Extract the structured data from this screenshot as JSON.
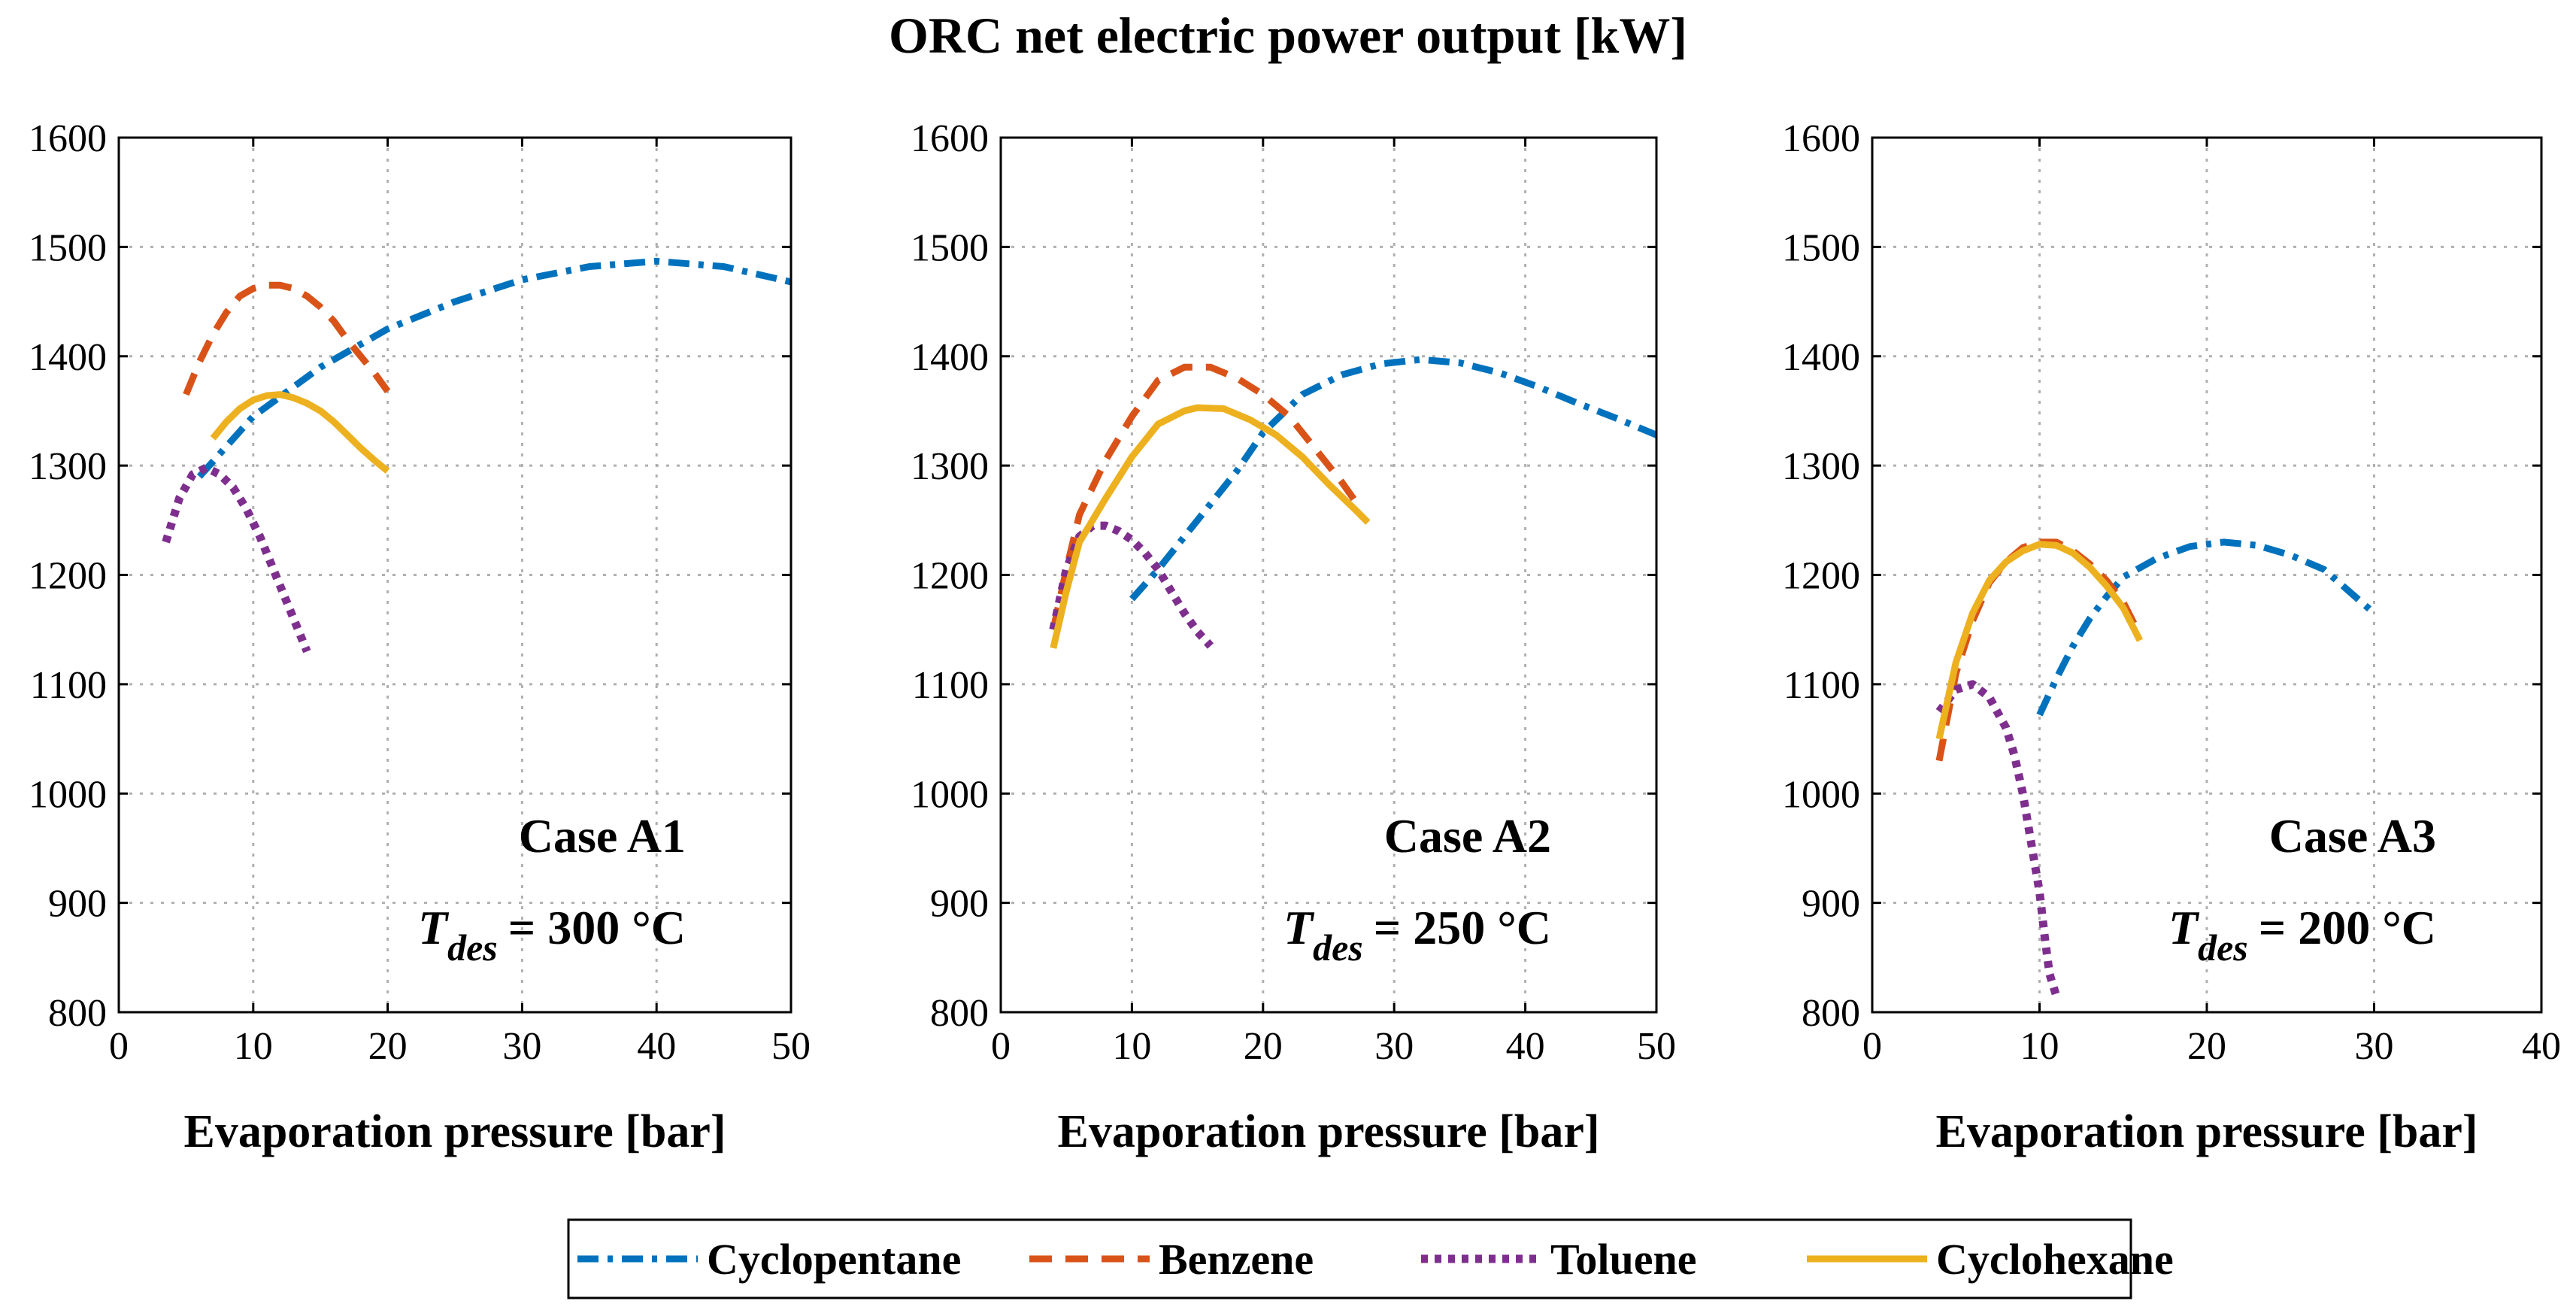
{
  "chart_data": {
    "type": "line",
    "title": "ORC net electric power output [kW]",
    "series_styles": [
      {
        "name": "Cyclopentane",
        "color": "#0072BD",
        "dash": "dashdot"
      },
      {
        "name": "Benzene",
        "color": "#D95319",
        "dash": "dash"
      },
      {
        "name": "Toluene",
        "color": "#7E2F8E",
        "dash": "dot"
      },
      {
        "name": "Cyclohexane",
        "color": "#EDB120",
        "dash": "solid"
      }
    ],
    "legend": {
      "placement": "bottom-center",
      "entries": [
        "Cyclopentane",
        "Benzene",
        "Toluene",
        "Cyclohexane"
      ]
    },
    "panels": [
      {
        "case_label": "Case A1",
        "tdes_symbol": "T",
        "tdes_subscript": "des",
        "tdes_value": "= 300 °C",
        "xlabel": "Evaporation pressure [bar]",
        "ylabel": "",
        "xlim": [
          0,
          50
        ],
        "ylim": [
          800,
          1600
        ],
        "xticks": [
          0,
          10,
          20,
          30,
          40,
          50
        ],
        "yticks": [
          800,
          900,
          1000,
          1100,
          1200,
          1300,
          1400,
          1500,
          1600
        ],
        "grid": true,
        "series": [
          {
            "name": "Cyclopentane",
            "x": [
              6,
              10,
              15,
              20,
              25,
              30,
              35,
              40,
              45,
              50
            ],
            "y": [
              1290,
              1345,
              1390,
              1425,
              1450,
              1470,
              1482,
              1487,
              1482,
              1468
            ]
          },
          {
            "name": "Benzene",
            "x": [
              5,
              6,
              7,
              8,
              9,
              10,
              11,
              12,
              13,
              14,
              15,
              16,
              17,
              18,
              19,
              20
            ],
            "y": [
              1365,
              1395,
              1420,
              1440,
              1455,
              1462,
              1465,
              1465,
              1462,
              1455,
              1445,
              1432,
              1415,
              1400,
              1385,
              1368
            ]
          },
          {
            "name": "Toluene",
            "x": [
              3.5,
              4.5,
              5.5,
              6.5,
              7.5,
              8.5,
              9.5,
              10.5,
              11.5,
              12.5,
              13.5,
              14
            ],
            "y": [
              1230,
              1270,
              1292,
              1298,
              1292,
              1280,
              1260,
              1235,
              1205,
              1175,
              1145,
              1130
            ]
          },
          {
            "name": "Cyclohexane",
            "x": [
              7,
              8,
              9,
              10,
              11,
              12,
              13,
              14,
              15,
              16,
              17,
              18,
              19,
              20
            ],
            "y": [
              1325,
              1340,
              1352,
              1360,
              1364,
              1365,
              1362,
              1357,
              1350,
              1340,
              1328,
              1316,
              1305,
              1295
            ]
          }
        ]
      },
      {
        "case_label": "Case A2",
        "tdes_symbol": "T",
        "tdes_subscript": "des",
        "tdes_value": "= 250 °C",
        "xlabel": "Evaporation pressure [bar]",
        "ylabel": "",
        "xlim": [
          0,
          50
        ],
        "ylim": [
          800,
          1600
        ],
        "xticks": [
          0,
          10,
          20,
          30,
          40,
          50
        ],
        "yticks": [
          800,
          900,
          1000,
          1100,
          1200,
          1300,
          1400,
          1500,
          1600
        ],
        "grid": true,
        "series": [
          {
            "name": "Cyclopentane",
            "x": [
              10,
              12,
              15,
              18,
              20,
              23,
              26,
              29,
              32,
              35,
              38,
              41,
              44,
              47,
              50
            ],
            "y": [
              1178,
              1205,
              1250,
              1295,
              1330,
              1365,
              1383,
              1393,
              1397,
              1394,
              1385,
              1372,
              1357,
              1343,
              1328
            ]
          },
          {
            "name": "Benzene",
            "x": [
              4,
              5,
              6,
              8,
              10,
              12,
              14,
              16,
              18,
              20,
              22,
              24,
              26,
              27
            ],
            "y": [
              1150,
              1205,
              1255,
              1305,
              1345,
              1378,
              1390,
              1390,
              1380,
              1365,
              1345,
              1315,
              1285,
              1268
            ]
          },
          {
            "name": "Toluene",
            "x": [
              4,
              5,
              6,
              7,
              8,
              9,
              10,
              11,
              12,
              13,
              14,
              15,
              16
            ],
            "y": [
              1150,
              1205,
              1235,
              1245,
              1245,
              1240,
              1232,
              1220,
              1205,
              1185,
              1165,
              1148,
              1135
            ]
          },
          {
            "name": "Cyclohexane",
            "x": [
              4,
              5,
              6,
              8,
              10,
              12,
              14,
              15,
              17,
              19,
              21,
              23,
              25,
              27,
              28
            ],
            "y": [
              1133,
              1185,
              1230,
              1270,
              1308,
              1338,
              1350,
              1353,
              1352,
              1342,
              1328,
              1308,
              1283,
              1260,
              1248
            ]
          }
        ]
      },
      {
        "case_label": "Case A3",
        "tdes_symbol": "T",
        "tdes_subscript": "des",
        "tdes_value": "= 200 °C",
        "xlabel": "Evaporation pressure [bar]",
        "ylabel": "",
        "xlim": [
          0,
          40
        ],
        "ylim": [
          800,
          1600
        ],
        "xticks": [
          0,
          10,
          20,
          30,
          40
        ],
        "yticks": [
          800,
          900,
          1000,
          1100,
          1200,
          1300,
          1400,
          1500,
          1600
        ],
        "grid": true,
        "series": [
          {
            "name": "Cyclopentane",
            "x": [
              10,
              11,
              12,
              13,
              14,
              15,
              17,
              19,
              21,
              23,
              25,
              27,
              30
            ],
            "y": [
              1072,
              1105,
              1135,
              1160,
              1180,
              1198,
              1215,
              1226,
              1230,
              1227,
              1218,
              1205,
              1165
            ]
          },
          {
            "name": "Benzene",
            "x": [
              4,
              5,
              6,
              7,
              8,
              9,
              10,
              11,
              12,
              13,
              14,
              15,
              16
            ],
            "y": [
              1030,
              1110,
              1158,
              1193,
              1212,
              1225,
              1230,
              1230,
              1222,
              1210,
              1195,
              1175,
              1145
            ]
          },
          {
            "name": "Toluene",
            "x": [
              4,
              5,
              6,
              7,
              8,
              8.5,
              9,
              9.5,
              10,
              10.3,
              10.6,
              11
            ],
            "y": [
              1075,
              1095,
              1100,
              1088,
              1060,
              1035,
              1000,
              955,
              910,
              870,
              835,
              815
            ]
          },
          {
            "name": "Cyclohexane",
            "x": [
              4,
              5,
              6,
              7,
              8,
              9,
              10,
              11,
              12,
              13,
              14,
              15,
              16
            ],
            "y": [
              1050,
              1120,
              1165,
              1195,
              1212,
              1222,
              1228,
              1227,
              1220,
              1207,
              1190,
              1170,
              1140
            ]
          }
        ]
      }
    ]
  }
}
